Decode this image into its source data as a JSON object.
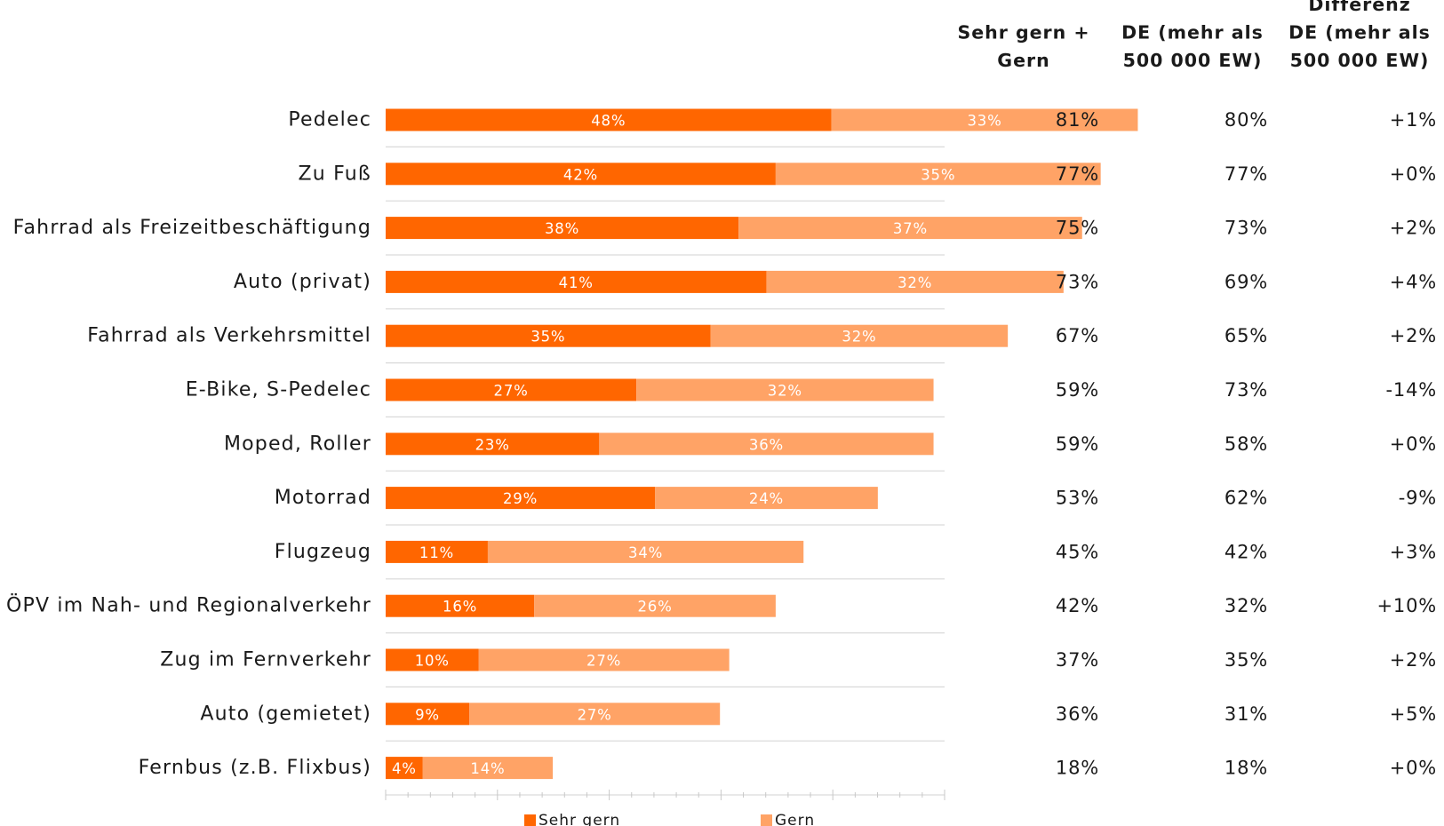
{
  "chart_data": {
    "type": "bar",
    "orientation": "horizontal",
    "stacked": true,
    "categories": [
      "Pedelec",
      "Zu Fuß",
      "Fahrrad als Freizeitbeschäftigung",
      "Auto (privat)",
      "Fahrrad als Verkehrsmittel",
      "E-Bike, S-Pedelec",
      "Moped, Roller",
      "Motorrad",
      "Flugzeug",
      "ÖPV im Nah- und Regionalverkehr",
      "Zug im Fernverkehr",
      "Auto (gemietet)",
      "Fernbus (z.B. Flixbus)"
    ],
    "series": [
      {
        "name": "Sehr gern",
        "color": "#ff6600",
        "values": [
          48,
          42,
          38,
          41,
          35,
          27,
          23,
          29,
          11,
          16,
          10,
          9,
          4
        ],
        "labels": [
          "48%",
          "42%",
          "38%",
          "41%",
          "35%",
          "27%",
          "23%",
          "29%",
          "11%",
          "16%",
          "10%",
          "9%",
          "4%"
        ]
      },
      {
        "name": "Gern",
        "color": "#ffa366",
        "values": [
          33,
          35,
          37,
          32,
          32,
          32,
          36,
          24,
          34,
          26,
          27,
          27,
          14
        ],
        "labels": [
          "33%",
          "35%",
          "37%",
          "32%",
          "32%",
          "32%",
          "36%",
          "24%",
          "34%",
          "26%",
          "27%",
          "27%",
          "14%"
        ]
      }
    ],
    "xlim": [
      0,
      100
    ],
    "grid": "horizontal separators",
    "legend_position": "bottom",
    "table_columns": [
      {
        "header": [
          "Sehr gern +",
          "Gern"
        ],
        "values": [
          "81%",
          "77%",
          "75%",
          "73%",
          "67%",
          "59%",
          "59%",
          "53%",
          "45%",
          "42%",
          "37%",
          "36%",
          "18%"
        ]
      },
      {
        "header": [
          "DE (mehr als",
          "500 000 EW)"
        ],
        "values": [
          "80%",
          "77%",
          "73%",
          "69%",
          "65%",
          "73%",
          "58%",
          "62%",
          "42%",
          "32%",
          "35%",
          "31%",
          "18%"
        ]
      },
      {
        "header": [
          "Differenz",
          "DE (mehr als",
          "500 000 EW)"
        ],
        "values": [
          "+1%",
          "+0%",
          "+2%",
          "+4%",
          "+2%",
          "-14%",
          "+0%",
          "-9%",
          "+3%",
          "+10%",
          "+2%",
          "+5%",
          "+0%"
        ]
      }
    ]
  }
}
